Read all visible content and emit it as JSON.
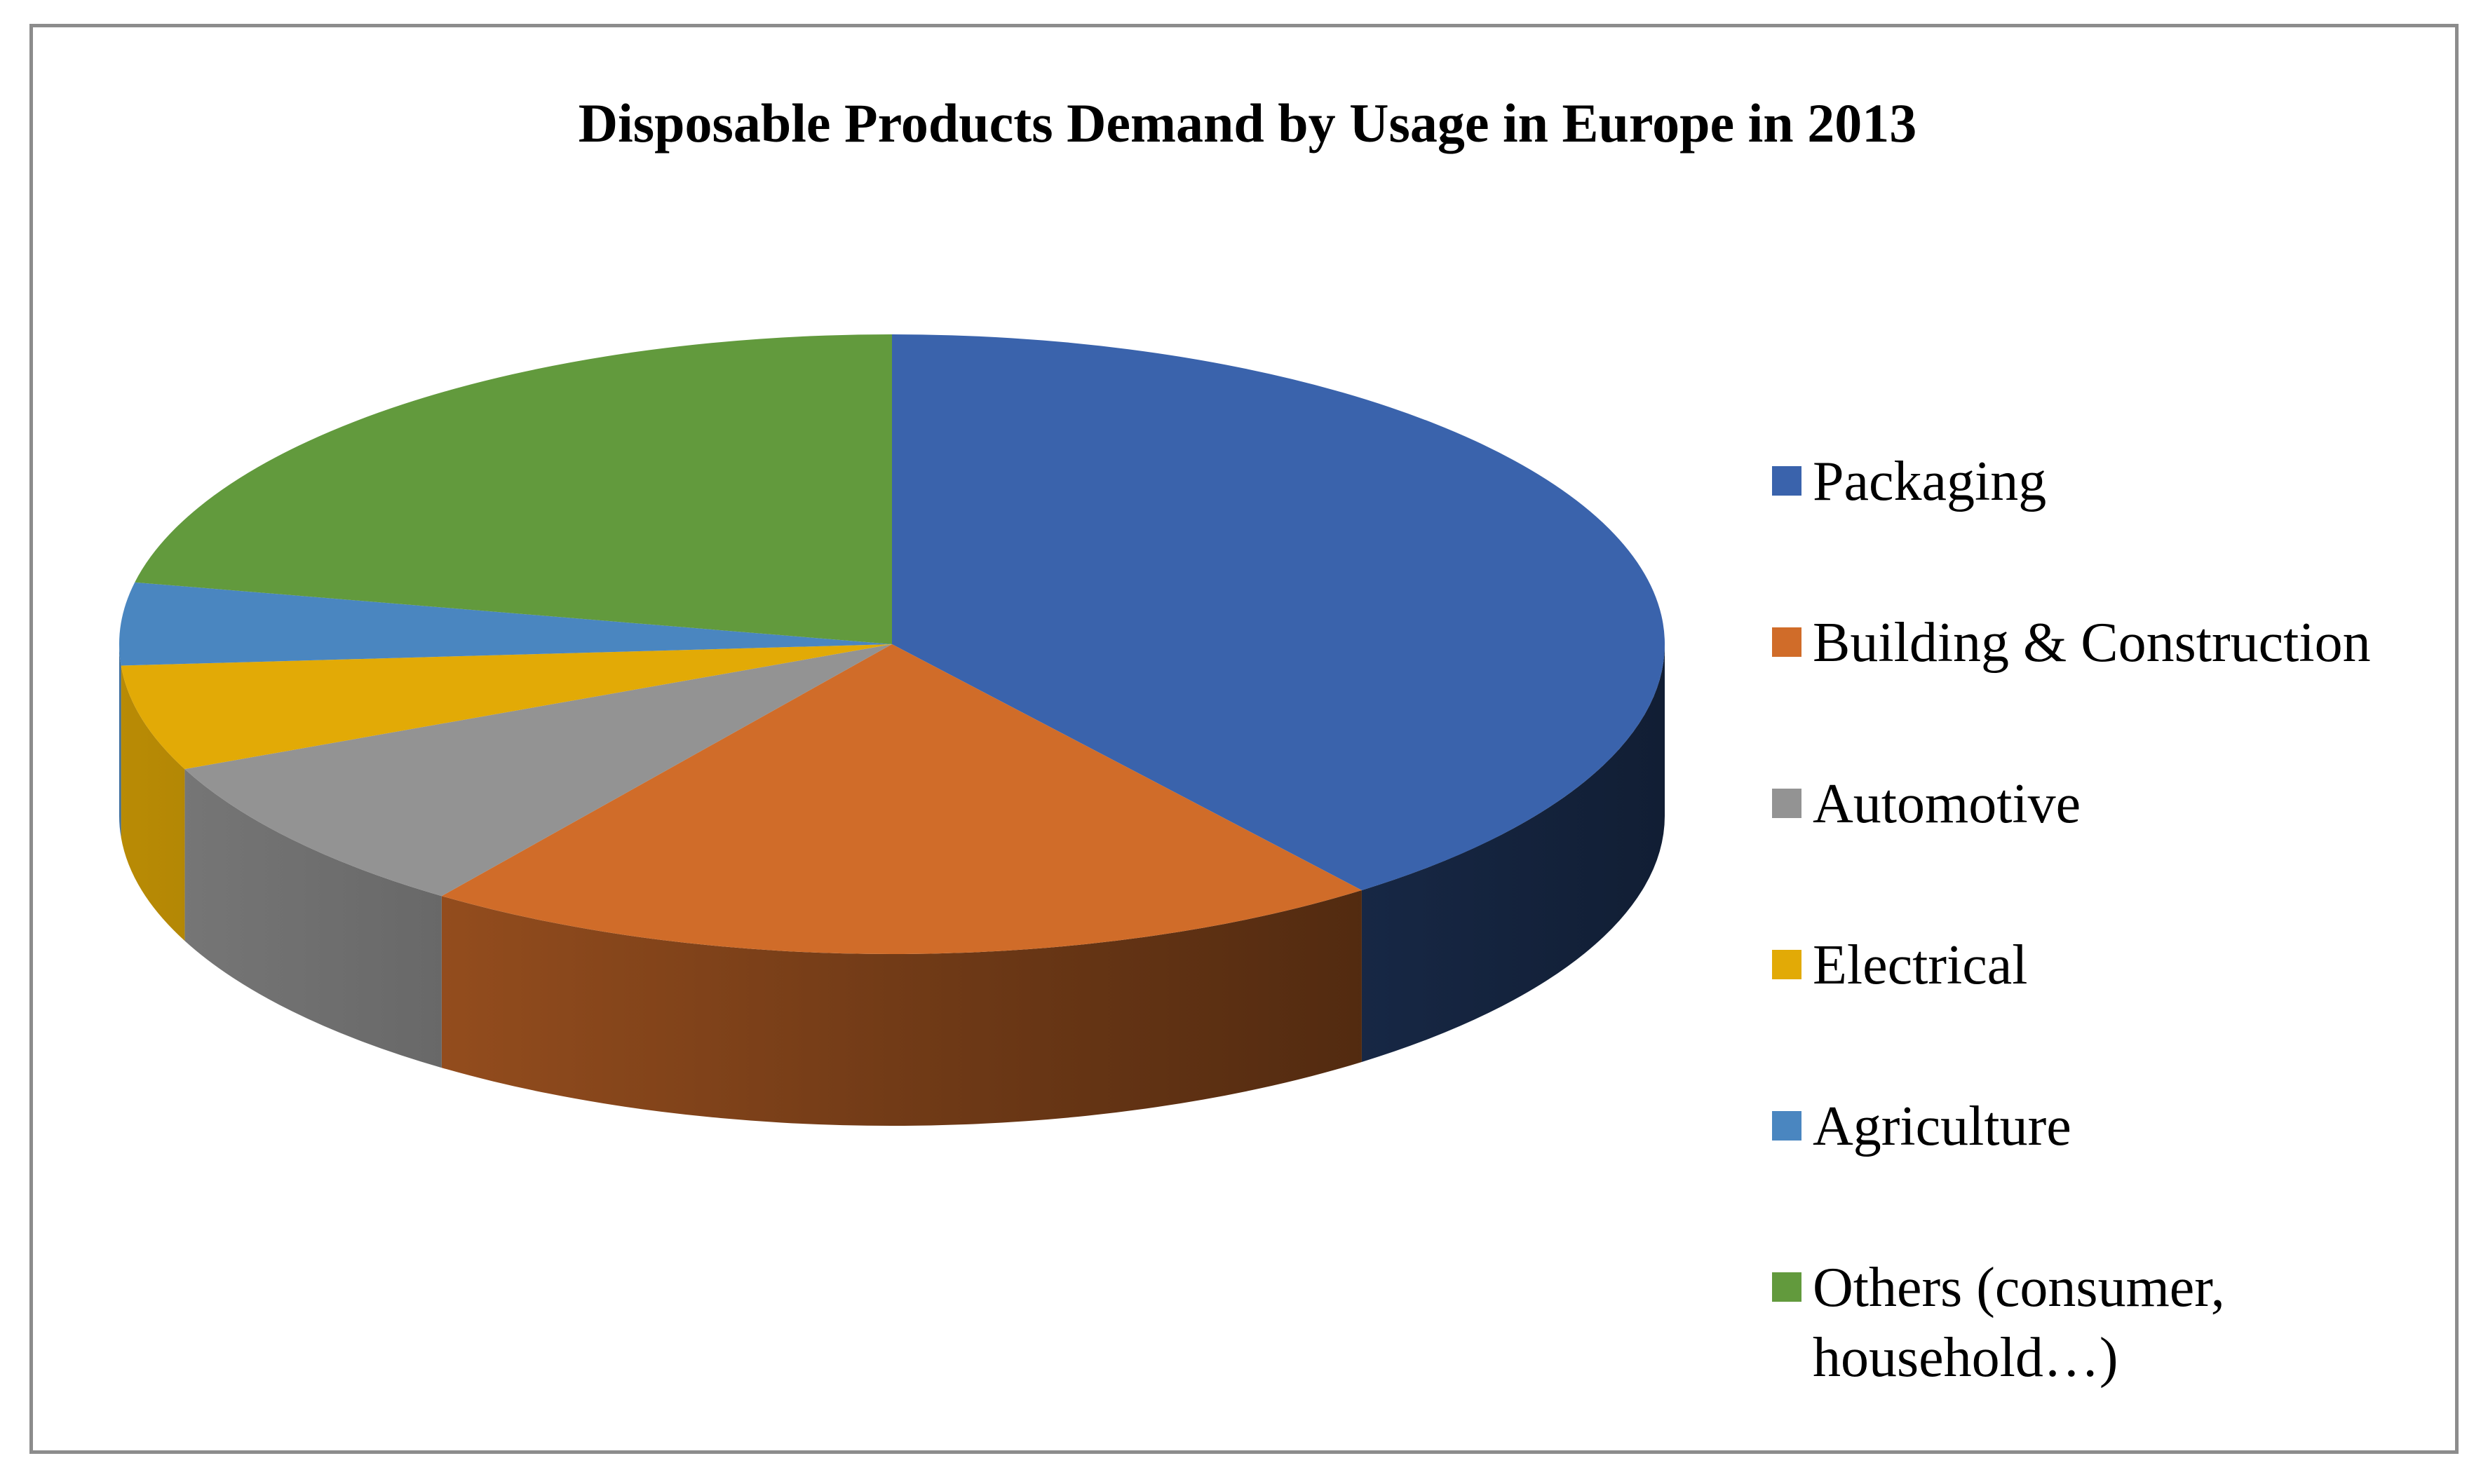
{
  "chart_data": {
    "type": "pie",
    "title": "Disposable Products Demand by Usage in Europe in 2013",
    "categories": [
      "Packaging",
      "Building & Construction",
      "Automotive",
      "Electrical",
      "Agriculture",
      "Others (consumer, household…)"
    ],
    "values": [
      39.6,
      20.3,
      8.5,
      5.5,
      4.3,
      21.8
    ],
    "unit": "%",
    "colors": [
      "#3a63ac",
      "#d06c29",
      "#939393",
      "#e2aa06",
      "#4a86c0",
      "#629a3d"
    ],
    "legend_position": "right",
    "style": "3d-pie"
  }
}
